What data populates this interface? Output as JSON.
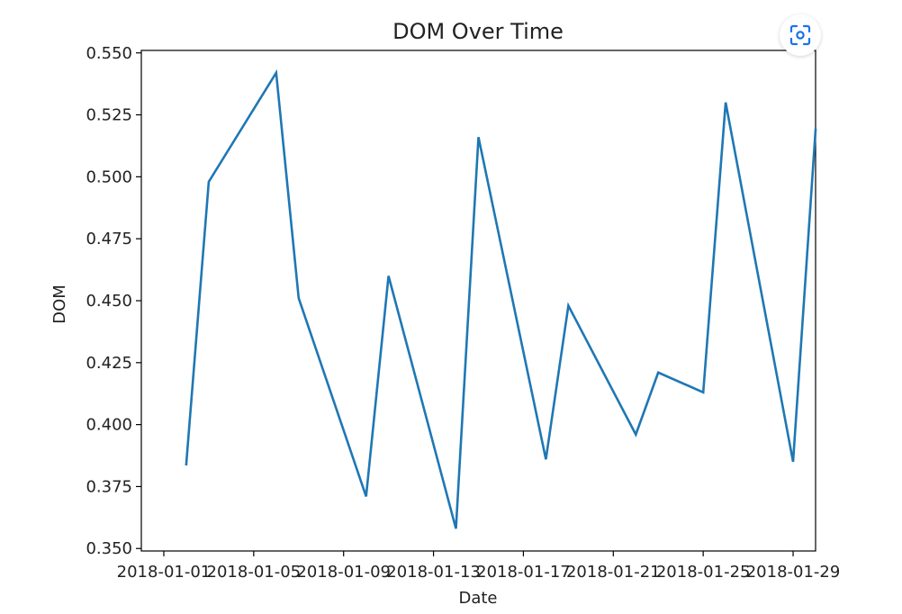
{
  "chart_data": {
    "type": "line",
    "title": "DOM Over Time",
    "xlabel": "Date",
    "ylabel": "DOM",
    "x_ticks": [
      "2018-01-01",
      "2018-01-05",
      "2018-01-09",
      "2018-01-13",
      "2018-01-17",
      "2018-01-21",
      "2018-01-25",
      "2018-01-29"
    ],
    "y_ticks": [
      "0.350",
      "0.375",
      "0.400",
      "0.425",
      "0.450",
      "0.475",
      "0.500",
      "0.525",
      "0.550"
    ],
    "xlim": [
      "2017-12-31",
      "2018-01-30"
    ],
    "ylim": [
      0.349,
      0.551
    ],
    "grid": false,
    "series": [
      {
        "color": "#1f77b4",
        "x": [
          "2018-01-02",
          "2018-01-03",
          "2018-01-06",
          "2018-01-07",
          "2018-01-10",
          "2018-01-11",
          "2018-01-14",
          "2018-01-15",
          "2018-01-18",
          "2018-01-19",
          "2018-01-22",
          "2018-01-23",
          "2018-01-25",
          "2018-01-26",
          "2018-01-29",
          "2018-01-30"
        ],
        "y": [
          0.384,
          0.498,
          0.542,
          0.451,
          0.371,
          0.46,
          0.358,
          0.516,
          0.386,
          0.448,
          0.396,
          0.421,
          0.413,
          0.53,
          0.385,
          0.519
        ]
      }
    ]
  },
  "ui": {
    "lens_icon": "lens-icon"
  }
}
